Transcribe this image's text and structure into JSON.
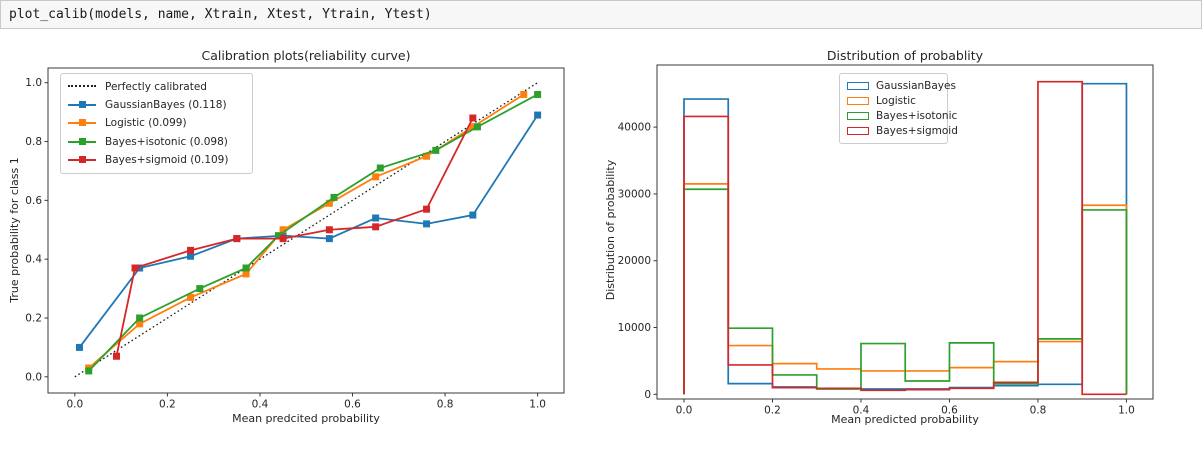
{
  "code_cell": {
    "source": "plot_calib(models, name, Xtrain, Xtest, Ytrain, Ytest)"
  },
  "colors": {
    "blue": "#1f77b4",
    "orange": "#ff7f0e",
    "green": "#2ca02c",
    "red": "#d62728",
    "diagonal": "#1a1a1a",
    "spine": "#3a3a3a"
  },
  "chart_data": [
    {
      "type": "line",
      "title": "Calibration plots(reliability curve)",
      "xlabel": "Mean predcited probability",
      "ylabel": "True probability for class 1",
      "xlim": [
        -0.058,
        1.057
      ],
      "ylim": [
        -0.055,
        1.05
      ],
      "xtick_values": [
        0,
        0.2,
        0.4,
        0.6,
        0.8,
        1.0
      ],
      "xtick_labels": [
        "0.0",
        "0.2",
        "0.4",
        "0.6",
        "0.8",
        "1.0"
      ],
      "ytick_values": [
        0,
        0.2,
        0.4,
        0.6,
        0.8,
        1.0
      ],
      "ytick_labels": [
        "0.0",
        "0.2",
        "0.4",
        "0.6",
        "0.8",
        "1.0"
      ],
      "grid": false,
      "legend_position": "upper left",
      "diagonal": {
        "label": "Perfectly calibrated",
        "points": [
          [
            0,
            0
          ],
          [
            1,
            1
          ]
        ],
        "style": "dotted",
        "color_key": "diagonal"
      },
      "series": [
        {
          "name": "GaussianBayes (0.118)",
          "color_key": "blue",
          "marker": "square",
          "points": [
            [
              0.01,
              0.1
            ],
            [
              0.14,
              0.37
            ],
            [
              0.25,
              0.41
            ],
            [
              0.35,
              0.47
            ],
            [
              0.45,
              0.48
            ],
            [
              0.55,
              0.47
            ],
            [
              0.65,
              0.54
            ],
            [
              0.76,
              0.52
            ],
            [
              0.86,
              0.55
            ],
            [
              1.0,
              0.89
            ]
          ]
        },
        {
          "name": "Logistic (0.099)",
          "color_key": "orange",
          "marker": "square",
          "points": [
            [
              0.03,
              0.03
            ],
            [
              0.14,
              0.18
            ],
            [
              0.25,
              0.27
            ],
            [
              0.37,
              0.35
            ],
            [
              0.45,
              0.5
            ],
            [
              0.55,
              0.59
            ],
            [
              0.65,
              0.68
            ],
            [
              0.76,
              0.75
            ],
            [
              0.86,
              0.85
            ],
            [
              0.97,
              0.96
            ]
          ]
        },
        {
          "name": "Bayes+isotonic (0.098)",
          "color_key": "green",
          "marker": "square",
          "points": [
            [
              0.03,
              0.02
            ],
            [
              0.14,
              0.2
            ],
            [
              0.27,
              0.3
            ],
            [
              0.37,
              0.37
            ],
            [
              0.44,
              0.48
            ],
            [
              0.56,
              0.61
            ],
            [
              0.66,
              0.71
            ],
            [
              0.78,
              0.77
            ],
            [
              0.87,
              0.85
            ],
            [
              1.0,
              0.96
            ]
          ]
        },
        {
          "name": "Bayes+sigmoid (0.109)",
          "color_key": "red",
          "marker": "square",
          "points": [
            [
              0.09,
              0.07
            ],
            [
              0.13,
              0.37
            ],
            [
              0.25,
              0.43
            ],
            [
              0.35,
              0.47
            ],
            [
              0.45,
              0.47
            ],
            [
              0.55,
              0.5
            ],
            [
              0.65,
              0.51
            ],
            [
              0.76,
              0.57
            ],
            [
              0.86,
              0.88
            ]
          ]
        }
      ]
    },
    {
      "type": "bar",
      "subtype": "step-histogram",
      "title": "Distribution of probablity",
      "xlabel": "Mean predicted probability",
      "ylabel": "Distribution of probability",
      "xlim": [
        -0.061,
        1.06
      ],
      "ylim": [
        -700,
        49300
      ],
      "xtick_values": [
        0,
        0.2,
        0.4,
        0.6,
        0.8,
        1.0
      ],
      "xtick_labels": [
        "0.0",
        "0.2",
        "0.4",
        "0.6",
        "0.8",
        "1.0"
      ],
      "ytick_values": [
        0,
        10000,
        20000,
        30000,
        40000
      ],
      "ytick_labels": [
        "0",
        "10000",
        "20000",
        "30000",
        "40000"
      ],
      "grid": false,
      "legend_position": "upper center",
      "bin_edges": [
        0,
        0.1,
        0.2,
        0.3,
        0.4,
        0.5,
        0.6,
        0.7,
        0.8,
        0.9,
        1.0
      ],
      "series": [
        {
          "name": "GaussianBayes",
          "color_key": "blue",
          "values": [
            44200,
            1600,
            1100,
            900,
            800,
            800,
            1000,
            1300,
            1500,
            46500
          ]
        },
        {
          "name": "Logistic",
          "color_key": "orange",
          "values": [
            31500,
            7300,
            4600,
            3800,
            3500,
            3500,
            4000,
            4900,
            7900,
            28300
          ]
        },
        {
          "name": "Bayes+isotonic",
          "color_key": "green",
          "values": [
            30700,
            9900,
            2900,
            800,
            7600,
            2000,
            7700,
            1600,
            8300,
            27600
          ]
        },
        {
          "name": "Bayes+sigmoid",
          "color_key": "red",
          "values": [
            41600,
            4400,
            1000,
            900,
            600,
            700,
            900,
            1800,
            46800,
            0
          ]
        }
      ]
    }
  ]
}
